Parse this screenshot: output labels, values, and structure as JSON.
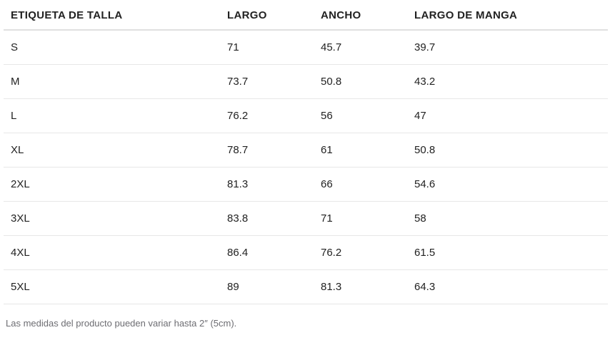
{
  "size_chart": {
    "columns": [
      "ETIQUETA DE TALLA",
      "LARGO",
      "ANCHO",
      "LARGO DE MANGA"
    ],
    "rows": [
      [
        "S",
        "71",
        "45.7",
        "39.7"
      ],
      [
        "M",
        "73.7",
        "50.8",
        "43.2"
      ],
      [
        "L",
        "76.2",
        "56",
        "47"
      ],
      [
        "XL",
        "78.7",
        "61",
        "50.8"
      ],
      [
        "2XL",
        "81.3",
        "66",
        "54.6"
      ],
      [
        "3XL",
        "83.8",
        "71",
        "58"
      ],
      [
        "4XL",
        "86.4",
        "76.2",
        "61.5"
      ],
      [
        "5XL",
        "89",
        "81.3",
        "64.3"
      ]
    ],
    "tolerance_note": "Las medidas del producto pueden variar hasta 2″ (5cm)."
  },
  "colors": {
    "text": "#222222",
    "muted_text": "#6d6d72",
    "header_border": "#e0e0e0",
    "row_border": "#e7e7e7",
    "background": "#ffffff"
  }
}
